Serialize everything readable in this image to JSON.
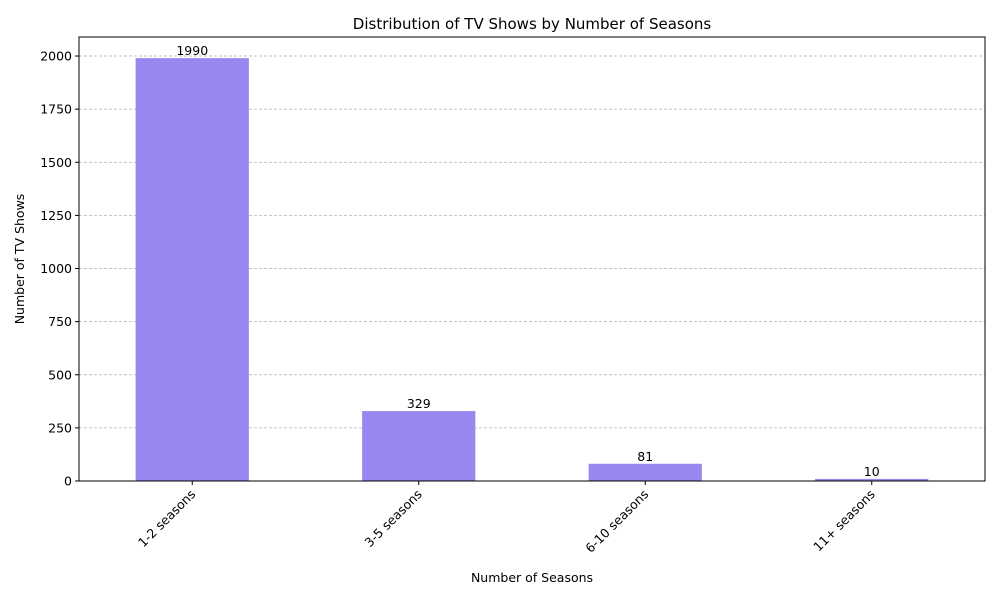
{
  "chart_data": {
    "type": "bar",
    "title": "Distribution of TV Shows by Number of Seasons",
    "xlabel": "Number of Seasons",
    "ylabel": "Number of TV Shows",
    "categories": [
      "1-2 seasons",
      "3-5 seasons",
      "6-10 seasons",
      "11+ seasons"
    ],
    "values": [
      1990,
      329,
      81,
      10
    ],
    "data_labels": [
      "1990",
      "329",
      "81",
      "10"
    ],
    "ylim": [
      0,
      2089.5
    ],
    "yticks": [
      0,
      250,
      500,
      750,
      1000,
      1250,
      1500,
      1750,
      2000
    ],
    "grid": "y-only",
    "bar_color": "#9788f0",
    "legend": "none"
  }
}
